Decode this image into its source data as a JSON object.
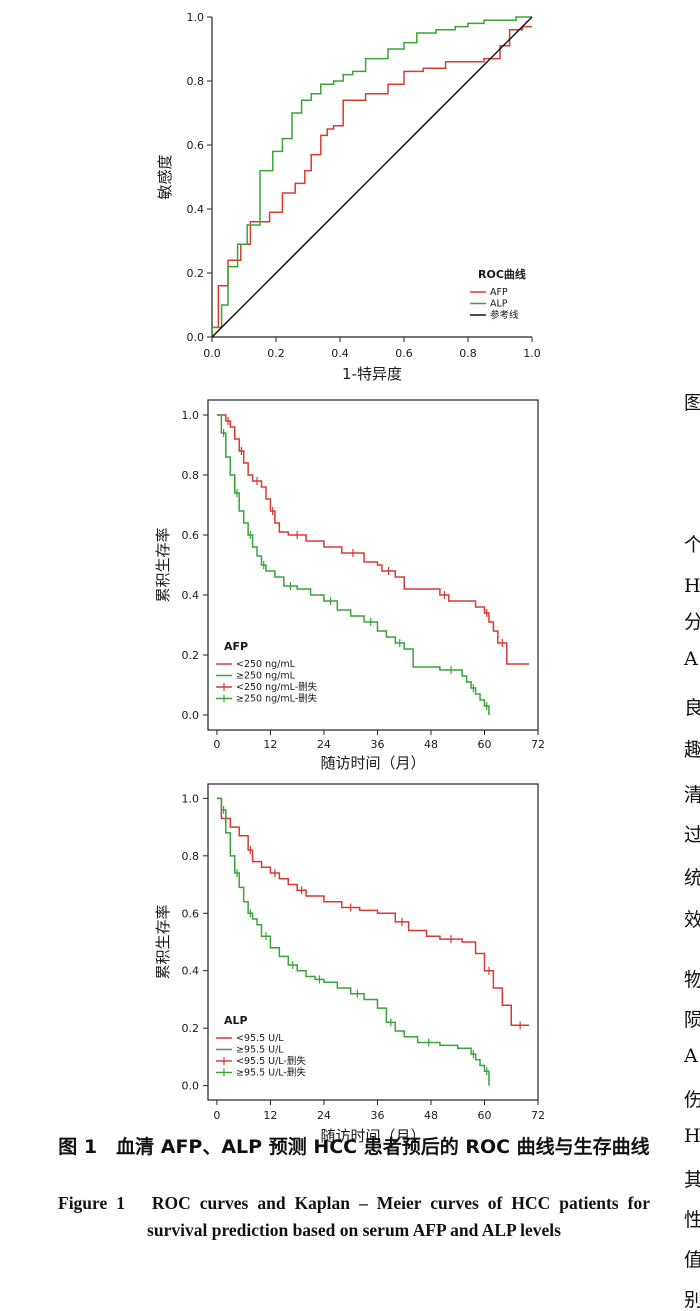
{
  "colors": {
    "red": "#d93a32",
    "green": "#3aa33a",
    "black": "#111111"
  },
  "chart_data": [
    {
      "type": "line",
      "subtype": "roc",
      "xlabel": "1-特异度",
      "ylabel": "敏感度",
      "xlim": [
        0,
        1
      ],
      "ylim": [
        0,
        1
      ],
      "x_ticks": [
        "0.0",
        "0.2",
        "0.4",
        "0.6",
        "0.8",
        "1.0"
      ],
      "y_ticks": [
        "0.0",
        "0.2",
        "0.4",
        "0.6",
        "0.8",
        "1.0"
      ],
      "legend_title": "ROC曲线",
      "legend_position": "bottom-right",
      "series": [
        {
          "name": "AFP",
          "color": "red",
          "x": [
            0,
            0,
            0.02,
            0.02,
            0.05,
            0.05,
            0.09,
            0.09,
            0.12,
            0.12,
            0.18,
            0.18,
            0.22,
            0.22,
            0.26,
            0.26,
            0.29,
            0.29,
            0.31,
            0.31,
            0.34,
            0.34,
            0.36,
            0.36,
            0.38,
            0.38,
            0.41,
            0.41,
            0.48,
            0.48,
            0.55,
            0.55,
            0.6,
            0.6,
            0.66,
            0.66,
            0.73,
            0.73,
            0.8,
            0.8,
            0.85,
            0.85,
            0.9,
            0.9,
            0.93,
            0.93,
            0.97,
            0.97,
            1.0
          ],
          "y": [
            0,
            0.03,
            0.03,
            0.16,
            0.16,
            0.24,
            0.24,
            0.29,
            0.29,
            0.36,
            0.36,
            0.39,
            0.39,
            0.45,
            0.45,
            0.48,
            0.48,
            0.52,
            0.52,
            0.57,
            0.57,
            0.63,
            0.63,
            0.65,
            0.65,
            0.66,
            0.66,
            0.74,
            0.74,
            0.76,
            0.76,
            0.79,
            0.79,
            0.83,
            0.83,
            0.84,
            0.84,
            0.86,
            0.86,
            0.86,
            0.86,
            0.87,
            0.87,
            0.91,
            0.91,
            0.96,
            0.96,
            0.97,
            0.97
          ]
        },
        {
          "name": "ALP",
          "color": "green",
          "x": [
            0,
            0,
            0.03,
            0.03,
            0.05,
            0.05,
            0.08,
            0.08,
            0.11,
            0.11,
            0.15,
            0.15,
            0.19,
            0.19,
            0.22,
            0.22,
            0.25,
            0.25,
            0.28,
            0.28,
            0.31,
            0.31,
            0.34,
            0.34,
            0.38,
            0.38,
            0.41,
            0.41,
            0.44,
            0.44,
            0.48,
            0.48,
            0.55,
            0.55,
            0.6,
            0.6,
            0.64,
            0.64,
            0.7,
            0.7,
            0.76,
            0.76,
            0.8,
            0.8,
            0.85,
            0.85,
            0.95,
            0.95,
            1.0
          ],
          "y": [
            0,
            0.03,
            0.03,
            0.1,
            0.1,
            0.22,
            0.22,
            0.29,
            0.29,
            0.35,
            0.35,
            0.52,
            0.52,
            0.58,
            0.58,
            0.62,
            0.62,
            0.7,
            0.7,
            0.74,
            0.74,
            0.76,
            0.76,
            0.79,
            0.79,
            0.8,
            0.8,
            0.82,
            0.82,
            0.83,
            0.83,
            0.87,
            0.87,
            0.9,
            0.9,
            0.92,
            0.92,
            0.95,
            0.95,
            0.96,
            0.96,
            0.97,
            0.97,
            0.98,
            0.98,
            0.99,
            0.99,
            1.0,
            1.0
          ]
        },
        {
          "name": "参考线",
          "color": "black",
          "x": [
            0,
            1
          ],
          "y": [
            0,
            1
          ]
        }
      ]
    },
    {
      "type": "line",
      "subtype": "kaplan-meier",
      "xlabel": "随访时间（月）",
      "ylabel": "累积生存率",
      "xlim": [
        -2,
        72
      ],
      "ylim": [
        -0.05,
        1.05
      ],
      "x_ticks": [
        "0",
        "12",
        "24",
        "36",
        "48",
        "60",
        "72"
      ],
      "y_ticks": [
        "0.0",
        "0.2",
        "0.4",
        "0.6",
        "0.8",
        "1.0"
      ],
      "legend_title": "AFP",
      "legend_position": "bottom-left",
      "legend_entries": [
        "<250 ng/mL",
        "≥250 ng/mL",
        "<250 ng/mL-删失",
        "≥250 ng/mL-删失"
      ],
      "series": [
        {
          "name": "<250 ng/mL",
          "color": "red",
          "x": [
            0,
            2,
            3,
            4,
            5,
            6,
            7,
            8,
            10,
            11,
            12,
            13,
            14,
            16,
            20,
            24,
            28,
            33,
            36,
            37,
            40,
            42,
            50,
            52,
            58,
            60,
            61,
            62,
            63,
            65,
            70
          ],
          "y": [
            1.0,
            0.98,
            0.96,
            0.92,
            0.88,
            0.84,
            0.8,
            0.78,
            0.76,
            0.72,
            0.68,
            0.64,
            0.61,
            0.6,
            0.58,
            0.56,
            0.54,
            0.51,
            0.5,
            0.48,
            0.46,
            0.42,
            0.4,
            0.38,
            0.36,
            0.34,
            0.31,
            0.28,
            0.24,
            0.17,
            0.17
          ]
        },
        {
          "name": "≥250 ng/mL",
          "color": "green",
          "x": [
            0,
            1,
            2,
            3,
            4,
            5,
            6,
            7,
            8,
            9,
            10,
            11,
            13,
            15,
            18,
            21,
            24,
            27,
            30,
            33,
            36,
            38,
            40,
            42,
            44,
            50,
            55,
            56,
            57,
            58,
            59,
            60,
            61
          ],
          "y": [
            1.0,
            0.94,
            0.86,
            0.8,
            0.74,
            0.68,
            0.64,
            0.6,
            0.56,
            0.53,
            0.5,
            0.48,
            0.46,
            0.43,
            0.42,
            0.4,
            0.38,
            0.35,
            0.33,
            0.31,
            0.28,
            0.26,
            0.24,
            0.22,
            0.16,
            0.15,
            0.13,
            0.11,
            0.09,
            0.07,
            0.05,
            0.03,
            0.0
          ]
        }
      ]
    },
    {
      "type": "line",
      "subtype": "kaplan-meier",
      "xlabel": "随访时间（月）",
      "ylabel": "累积生存率",
      "xlim": [
        -2,
        72
      ],
      "ylim": [
        -0.05,
        1.05
      ],
      "x_ticks": [
        "0",
        "12",
        "24",
        "36",
        "48",
        "60",
        "72"
      ],
      "y_ticks": [
        "0.0",
        "0.2",
        "0.4",
        "0.6",
        "0.8",
        "1.0"
      ],
      "legend_title": "ALP",
      "legend_position": "bottom-left",
      "legend_entries": [
        "<95.5 U/L",
        "≥95.5 U/L",
        "<95.5 U/L-删失",
        "≥95.5 U/L-删失"
      ],
      "series": [
        {
          "name": "<95.5 U/L",
          "color": "red",
          "x": [
            0,
            1,
            3,
            5,
            7,
            8,
            10,
            12,
            14,
            16,
            18,
            20,
            24,
            28,
            32,
            36,
            40,
            43,
            47,
            50,
            55,
            58,
            60,
            62,
            64,
            66,
            70
          ],
          "y": [
            1.0,
            0.93,
            0.9,
            0.87,
            0.82,
            0.78,
            0.76,
            0.74,
            0.72,
            0.7,
            0.68,
            0.66,
            0.64,
            0.62,
            0.61,
            0.6,
            0.57,
            0.54,
            0.52,
            0.51,
            0.5,
            0.46,
            0.4,
            0.34,
            0.28,
            0.21,
            0.21
          ]
        },
        {
          "name": "≥95.5 U/L",
          "color": "green",
          "x": [
            0,
            1,
            2,
            3,
            4,
            5,
            6,
            7,
            8,
            9,
            10,
            12,
            14,
            16,
            18,
            20,
            22,
            24,
            27,
            30,
            33,
            36,
            38,
            40,
            42,
            45,
            50,
            54,
            57,
            58,
            59,
            60,
            61
          ],
          "y": [
            1.0,
            0.96,
            0.88,
            0.8,
            0.74,
            0.69,
            0.64,
            0.6,
            0.58,
            0.56,
            0.52,
            0.48,
            0.45,
            0.42,
            0.4,
            0.38,
            0.37,
            0.36,
            0.34,
            0.32,
            0.3,
            0.27,
            0.22,
            0.19,
            0.17,
            0.15,
            0.14,
            0.13,
            0.11,
            0.09,
            0.07,
            0.05,
            0.0
          ]
        }
      ]
    }
  ],
  "captions": {
    "zh": "图 1　血清 AFP、ALP 预测 HCC 患者预后的 ROC 曲线与生存曲线",
    "en": "Figure 1　ROC curves and Kaplan – Meier curves of HCC patients for survival prediction based on serum AFP and ALP levels"
  },
  "right_column": [
    "图",
    "个",
    "H",
    "分",
    "A",
    "良",
    "趣",
    "清",
    "过",
    "统",
    "效",
    "物",
    "陨",
    "A",
    "伤",
    "H",
    "其",
    "性",
    "值",
    "别"
  ]
}
